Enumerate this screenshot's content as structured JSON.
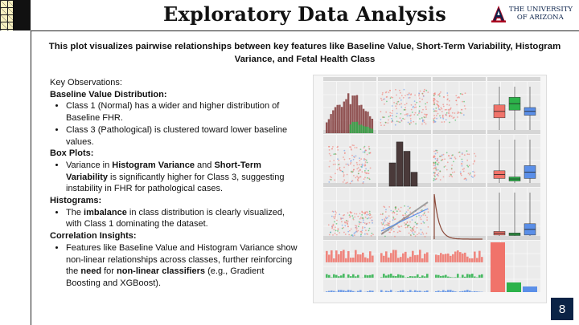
{
  "header": {
    "title": "Exploratory Data Analysis",
    "logo_line1": "THE UNIVERSITY",
    "logo_line2": "OF ARIZONA"
  },
  "subtitle": "This plot visualizes pairwise relationships between key features like Baseline Value, Short-Term Variability, Histogram Variance, and Fetal Health Class",
  "observations": {
    "heading": "Key Observations:",
    "baseline_heading": "Baseline Value Distribution:",
    "baseline_items": [
      "Class 1 (Normal) has a wider and higher distribution of Baseline FHR.",
      "Class 3 (Pathological) is clustered toward lower baseline values."
    ],
    "box_heading": "Box Plots:",
    "box_item": {
      "t1": "Variance in ",
      "b1": "Histogram Variance",
      "t2": " and ",
      "b2": "Short-Term Variability",
      "t3": " is significantly higher for Class 3, suggesting instability in FHR for pathological cases."
    },
    "hist_heading": "Histograms:",
    "hist_item": {
      "t1": "The ",
      "b1": "imbalance",
      "t2": " in class distribution is clearly visualized, with Class 1 dominating the dataset."
    },
    "corr_heading": "Correlation Insights:",
    "corr_item": {
      "t1": "Features like Baseline Value and Histogram Variance show non-linear relationships across classes, further reinforcing the ",
      "b1": "need",
      "t2": " for ",
      "b2": "non-linear classifiers",
      "t3": " (e.g., Gradient Boosting and XGBoost)."
    }
  },
  "plot": {
    "colors": {
      "class1": "#f0736a",
      "class2": "#2cb24a",
      "class3": "#5b8fe8",
      "hist": "#7a2e2e"
    }
  },
  "page_number": "8",
  "colors": {
    "navy": "#0b2346",
    "arizona_red": "#ab0520"
  }
}
